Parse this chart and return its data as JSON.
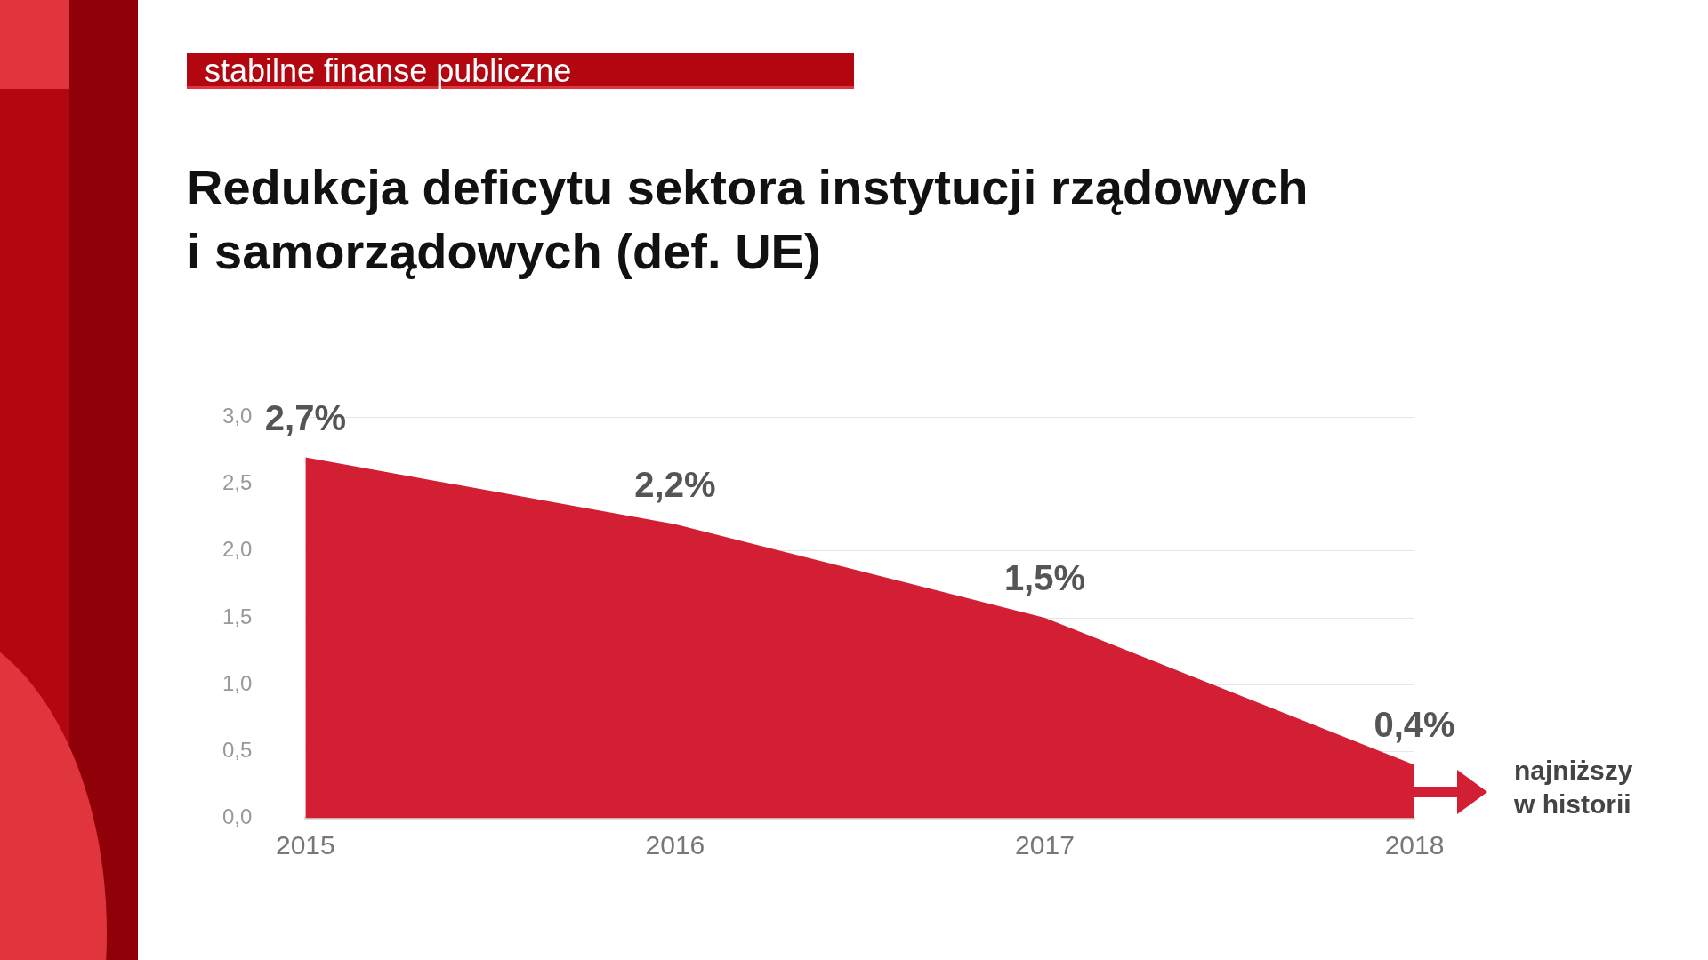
{
  "chart_data": {
    "type": "area",
    "subtitle": "stabilne finanse publiczne",
    "title": "Redukcja deficytu sektora instytucji rządowych\ni samorządowych (def. UE)",
    "categories": [
      "2015",
      "2016",
      "2017",
      "2018"
    ],
    "values": [
      2.7,
      2.2,
      1.5,
      0.4
    ],
    "color": "#d21f33",
    "value_labels": [
      "2,7%",
      "2,2%",
      "1,5%",
      "0,4%"
    ],
    "ylim": [
      0,
      3
    ],
    "yticks": [
      {
        "value": 0,
        "label": "0,0"
      },
      {
        "value": 0.5,
        "label": "0,5"
      },
      {
        "value": 1,
        "label": "1,0"
      },
      {
        "value": 1.5,
        "label": "1,5"
      },
      {
        "value": 2,
        "label": "2,0"
      },
      {
        "value": 2.5,
        "label": "2,5"
      },
      {
        "value": 3,
        "label": "3,0"
      }
    ],
    "grid": "y",
    "legend": false,
    "marker": "none",
    "annotations": [
      "najniższy\nw historii"
    ]
  }
}
